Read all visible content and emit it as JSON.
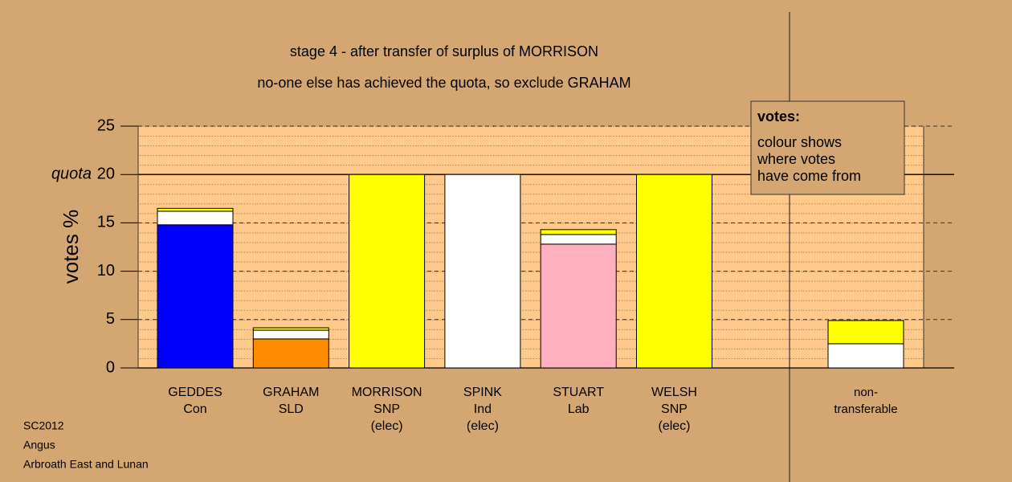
{
  "chart_data": {
    "type": "stacked_bar",
    "title": "stage 4 - after transfer of surplus of MORRISON",
    "subtitle": "no-one else has achieved the quota, so exclude GRAHAM",
    "y_label": "votes %",
    "categories": [
      [
        "GEDDES",
        "Con"
      ],
      [
        "GRAHAM",
        "SLD"
      ],
      [
        "MORRISON",
        "SNP",
        "(elec)"
      ],
      [
        "SPINK",
        "Ind",
        "(elec)"
      ],
      [
        "STUART",
        "Lab"
      ],
      [
        "WELSH",
        "SNP",
        "(elec)"
      ],
      [
        "non-",
        "transferable"
      ]
    ],
    "series": [
      {
        "color": "#0000ff",
        "values": [
          14.8,
          null,
          null,
          null,
          null,
          null,
          null
        ]
      },
      {
        "color": "#ff8c00",
        "values": [
          null,
          3.0,
          null,
          null,
          null,
          null,
          null
        ]
      },
      {
        "color": "#ffb0c0",
        "values": [
          null,
          null,
          null,
          null,
          12.8,
          null,
          null
        ]
      },
      {
        "color": "#ffffff",
        "values": [
          1.4,
          0.9,
          null,
          20,
          1.0,
          null,
          2.5
        ]
      },
      {
        "color": "#ffff00",
        "values": [
          0.3,
          0.25,
          20,
          null,
          0.5,
          20,
          2.4
        ]
      }
    ],
    "ylim": [
      0,
      25
    ],
    "yticks": [
      0,
      5,
      10,
      15,
      20,
      25
    ],
    "quota": 20,
    "quota_label": "quota",
    "note_title": "votes:",
    "note_lines": [
      "colour shows",
      "where votes",
      "have come from"
    ],
    "footer": [
      "SC2012",
      "Angus",
      "Arbroath East and Lunan"
    ]
  }
}
